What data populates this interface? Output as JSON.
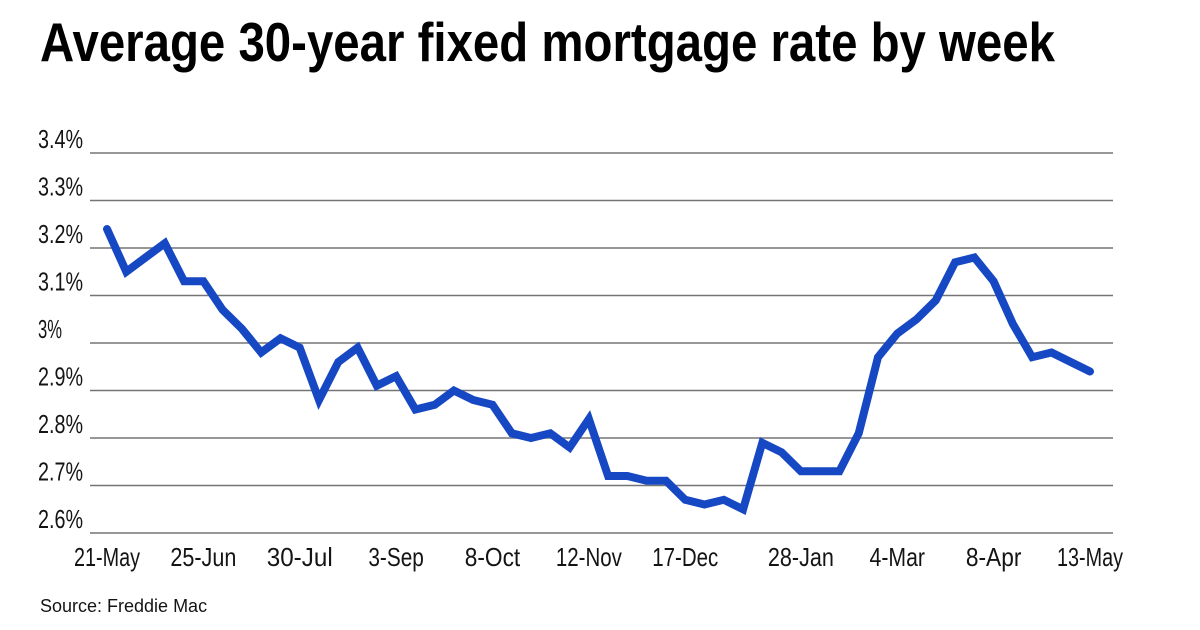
{
  "page": {
    "title": "Average 30-year fixed mortgage rate by week",
    "source": "Source: Freddie Mac"
  },
  "colors": {
    "line": "#1748c4",
    "gridline": "#757575",
    "text": "#141414",
    "background": "#ffffff"
  },
  "chart_data": {
    "type": "line",
    "title": "Average 30-year fixed mortgage rate by week",
    "source": "Source: Freddie Mac",
    "unit": "%",
    "grid": "horizontal",
    "legend": "none",
    "ylim": [
      2.6,
      3.4
    ],
    "y_ticks": [
      {
        "label": "3.4%",
        "value": 3.4
      },
      {
        "label": "3.3%",
        "value": 3.3
      },
      {
        "label": "3.2%",
        "value": 3.2
      },
      {
        "label": "3.1%",
        "value": 3.1
      },
      {
        "label": "3%",
        "value": 3.0
      },
      {
        "label": "2.9%",
        "value": 2.9
      },
      {
        "label": "2.8%",
        "value": 2.8
      },
      {
        "label": "2.7%",
        "value": 2.7
      },
      {
        "label": "2.6%",
        "value": 2.6
      }
    ],
    "x": [
      "21-May",
      "28-May",
      "4-Jun",
      "11-Jun",
      "18-Jun",
      "25-Jun",
      "2-Jul",
      "9-Jul",
      "16-Jul",
      "23-Jul",
      "30-Jul",
      "6-Aug",
      "13-Aug",
      "20-Aug",
      "27-Aug",
      "3-Sep",
      "10-Sep",
      "17-Sep",
      "24-Sep",
      "1-Oct",
      "8-Oct",
      "15-Oct",
      "22-Oct",
      "29-Oct",
      "5-Nov",
      "12-Nov",
      "19-Nov",
      "26-Nov",
      "3-Dec",
      "10-Dec",
      "17-Dec",
      "24-Dec",
      "31-Dec",
      "7-Jan",
      "14-Jan",
      "21-Jan",
      "28-Jan",
      "4-Feb",
      "11-Feb",
      "18-Feb",
      "25-Feb",
      "4-Mar",
      "11-Mar",
      "18-Mar",
      "25-Mar",
      "1-Apr",
      "8-Apr",
      "15-Apr",
      "22-Apr",
      "29-Apr",
      "6-May",
      "13-May"
    ],
    "x_tick_labels": [
      {
        "label": "21-May",
        "index": 0
      },
      {
        "label": "25-Jun",
        "index": 5
      },
      {
        "label": "30-Jul",
        "index": 10
      },
      {
        "label": "3-Sep",
        "index": 15
      },
      {
        "label": "8-Oct",
        "index": 20
      },
      {
        "label": "12-Nov",
        "index": 25
      },
      {
        "label": "17-Dec",
        "index": 30
      },
      {
        "label": "28-Jan",
        "index": 36
      },
      {
        "label": "4-Mar",
        "index": 41
      },
      {
        "label": "8-Apr",
        "index": 46
      },
      {
        "label": "13-May",
        "index": 51
      }
    ],
    "series": [
      {
        "name": "Average 30-year fixed mortgage rate",
        "values": [
          3.24,
          3.15,
          3.18,
          3.21,
          3.13,
          3.13,
          3.07,
          3.03,
          2.98,
          3.01,
          2.99,
          2.88,
          2.96,
          2.99,
          2.91,
          2.93,
          2.86,
          2.87,
          2.9,
          2.88,
          2.87,
          2.81,
          2.8,
          2.81,
          2.78,
          2.84,
          2.72,
          2.72,
          2.71,
          2.71,
          2.67,
          2.66,
          2.67,
          2.65,
          2.79,
          2.77,
          2.73,
          2.73,
          2.73,
          2.81,
          2.97,
          3.02,
          3.05,
          3.09,
          3.17,
          3.18,
          3.13,
          3.04,
          2.97,
          2.98,
          2.96,
          2.94
        ]
      }
    ]
  }
}
